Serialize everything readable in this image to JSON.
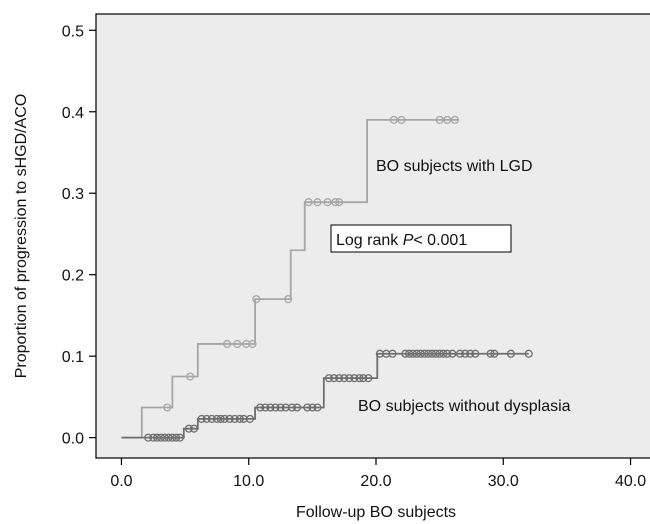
{
  "chart_data": {
    "type": "line",
    "xlabel": "Follow-up BO subjects",
    "ylabel": "Proportion of progression to sHGD/ACO",
    "xlim": [
      -2,
      42
    ],
    "ylim": [
      -0.025,
      0.52
    ],
    "x_ticks": [
      0,
      10,
      20,
      30,
      40
    ],
    "x_tick_labels": [
      "0.0",
      "10.0",
      "20.0",
      "30.0",
      "40.0"
    ],
    "y_ticks": [
      0,
      0.1,
      0.2,
      0.3,
      0.4,
      0.5
    ],
    "y_tick_labels": [
      "0.0",
      "0.1",
      "0.2",
      "0.3",
      "0.4",
      "0.5"
    ],
    "grid": false,
    "plot_background": "#ececec",
    "annotations": {
      "lgd_label": "BO subjects with LGD",
      "nodys_label": "BO subjects without dysplasia",
      "logrank_prefix": "Log rank ",
      "logrank_p": "P",
      "logrank_suffix": "< 0.001"
    },
    "series": [
      {
        "color": "#a6a6a6",
        "steps": [
          [
            0,
            0
          ],
          [
            1.6,
            0.037
          ],
          [
            4,
            0.075
          ],
          [
            6,
            0.115
          ],
          [
            10.5,
            0.17
          ],
          [
            13.3,
            0.23
          ],
          [
            14.4,
            0.289
          ],
          [
            19.3,
            0.39
          ],
          [
            26.5,
            0.39
          ]
        ],
        "censored": [
          3.6,
          5.4,
          8.3,
          9.1,
          9.8,
          10.3,
          10.6,
          13.1,
          14.7,
          15.4,
          16.2,
          16.8,
          17.1,
          21.4,
          22.0,
          25.0,
          25.6,
          26.2
        ]
      },
      {
        "color": "#6e6e6e",
        "steps": [
          [
            0,
            0
          ],
          [
            4.9,
            0.011
          ],
          [
            6,
            0.023
          ],
          [
            10.5,
            0.037
          ],
          [
            15.9,
            0.073
          ],
          [
            20.1,
            0.103
          ],
          [
            32,
            0.103
          ]
        ],
        "censored": [
          2.1,
          2.5,
          2.8,
          3.1,
          3.4,
          3.7,
          4.0,
          4.3,
          4.6,
          5.3,
          5.7,
          6.3,
          6.7,
          7.1,
          7.5,
          7.8,
          8.1,
          8.5,
          8.9,
          9.3,
          9.6,
          10.1,
          10.9,
          11.3,
          11.7,
          12.1,
          12.5,
          12.9,
          13.4,
          13.8,
          14.6,
          15.0,
          15.4,
          16.3,
          16.7,
          17.1,
          17.5,
          17.9,
          18.3,
          18.7,
          19.0,
          19.4,
          20.3,
          20.8,
          21.3,
          22.3,
          22.6,
          22.9,
          23.2,
          23.5,
          23.8,
          24.1,
          24.4,
          24.7,
          25.0,
          25.3,
          25.6,
          26.0,
          26.6,
          27.0,
          27.4,
          27.8,
          29.0,
          29.3,
          30.6,
          32.0
        ]
      }
    ]
  }
}
